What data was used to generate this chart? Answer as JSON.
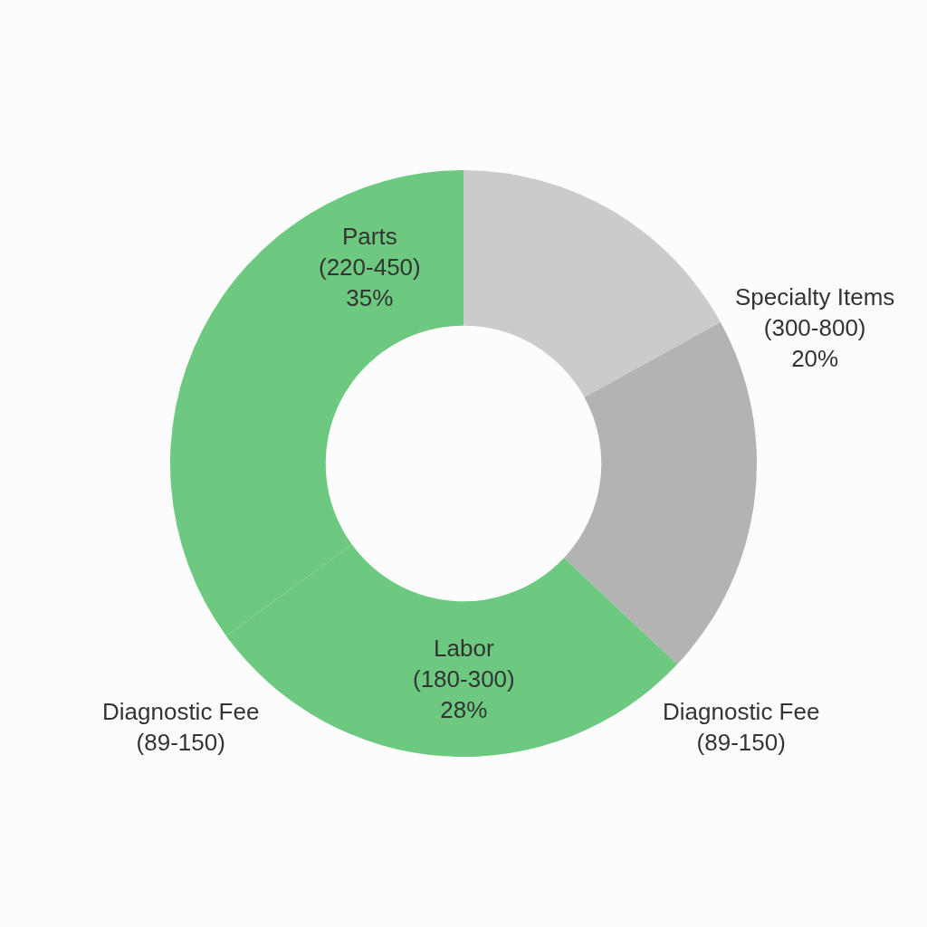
{
  "chart_data": {
    "type": "donut",
    "categories": [
      null,
      "Specialty Items (300-800)",
      "Labor (180-300)",
      "Parts (220-450)"
    ],
    "values": [
      17,
      20,
      28,
      35
    ],
    "colors": [
      "#cbcbcb",
      "#b3b3b3",
      "#6cc97f",
      "#6cc97f"
    ],
    "value_labels": [
      null,
      "20%",
      "28%",
      "35%"
    ],
    "annotations": [
      "Diagnostic Fee (89-150)",
      "Diagnostic Fee (89-150)"
    ]
  }
}
